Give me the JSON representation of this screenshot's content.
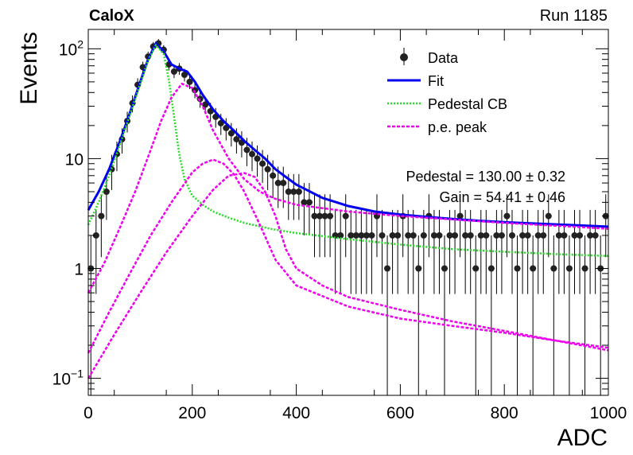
{
  "header": {
    "experiment": "CaloX",
    "run": "Run 1185"
  },
  "chart_data": {
    "type": "scatter",
    "xlabel": "ADC",
    "ylabel": "Events",
    "xlim": [
      0,
      1000
    ],
    "ylim": [
      0.07,
      150
    ],
    "log_y": true,
    "x_ticks": [
      0,
      200,
      400,
      600,
      800,
      1000
    ],
    "y_ticks": [
      {
        "value": 0.1,
        "base": "10",
        "exp": "−1"
      },
      {
        "value": 1,
        "label": "1"
      },
      {
        "value": 10,
        "label": "10"
      },
      {
        "value": 100,
        "base": "10",
        "exp": "2"
      }
    ],
    "legend_position": "top-right",
    "legend": [
      {
        "label": "Data",
        "style": "marker",
        "color": "#000000"
      },
      {
        "label": "Fit",
        "style": "solid",
        "color": "#0000ee"
      },
      {
        "label": "Pedestal CB",
        "style": "dotted",
        "color": "#22dd22"
      },
      {
        "label": "p.e. peak",
        "style": "dashed",
        "color": "#ee00ee"
      }
    ],
    "fit_params": [
      "Pedestal = 130.00 ± 0.32",
      "Gain = 54.41 ± 0.46"
    ],
    "series": [
      {
        "name": "Data",
        "kind": "points",
        "x": [
          5,
          15,
          25,
          35,
          45,
          55,
          65,
          75,
          85,
          95,
          105,
          115,
          125,
          135,
          145,
          155,
          165,
          175,
          185,
          195,
          205,
          215,
          225,
          235,
          245,
          255,
          265,
          275,
          285,
          295,
          305,
          315,
          325,
          335,
          345,
          355,
          365,
          375,
          385,
          395,
          405,
          415,
          425,
          435,
          445,
          455,
          465,
          475,
          485,
          495,
          505,
          515,
          525,
          535,
          545,
          555,
          565,
          575,
          585,
          595,
          605,
          615,
          625,
          635,
          645,
          655,
          665,
          675,
          685,
          695,
          705,
          715,
          725,
          735,
          745,
          755,
          765,
          775,
          785,
          795,
          805,
          815,
          825,
          835,
          845,
          855,
          865,
          875,
          885,
          895,
          905,
          915,
          925,
          935,
          945,
          955,
          965,
          975,
          985,
          995
        ],
        "y": [
          1,
          2,
          3,
          5,
          8,
          11,
          15,
          22,
          32,
          47,
          68,
          85,
          105,
          112,
          98,
          72,
          62,
          66,
          58,
          50,
          42,
          35,
          31,
          27,
          24,
          21,
          19,
          17,
          15,
          14,
          12,
          11,
          10,
          9,
          8,
          7,
          6,
          6,
          5,
          5,
          5,
          4,
          4,
          3,
          3,
          3,
          3,
          2,
          2,
          3,
          2,
          2,
          2,
          2,
          2,
          3,
          2,
          1,
          2,
          2,
          3,
          2,
          2,
          1,
          2,
          3,
          2,
          2,
          1,
          2,
          2,
          3,
          2,
          2,
          1,
          2,
          2,
          1,
          2,
          2,
          3,
          2,
          1,
          2,
          2,
          1,
          2,
          2,
          3,
          1,
          2,
          2,
          1,
          2,
          2,
          1,
          2,
          2,
          1,
          3
        ]
      },
      {
        "name": "Fit",
        "kind": "line",
        "x": [
          0,
          20,
          40,
          60,
          80,
          100,
          115,
          130,
          145,
          160,
          175,
          190,
          205,
          220,
          240,
          260,
          280,
          300,
          320,
          340,
          360,
          380,
          400,
          450,
          500,
          550,
          600,
          650,
          700,
          750,
          800,
          850,
          900,
          950,
          1000
        ],
        "y": [
          3.4,
          5,
          8,
          14,
          26,
          50,
          80,
          112,
          95,
          72,
          66,
          62,
          50,
          38,
          28,
          22,
          18,
          14.5,
          12,
          10,
          8,
          6.8,
          5.8,
          4.4,
          3.7,
          3.3,
          3.1,
          2.95,
          2.82,
          2.72,
          2.64,
          2.58,
          2.52,
          2.46,
          2.4
        ]
      },
      {
        "name": "Pedestal CB",
        "kind": "line",
        "x": [
          0,
          20,
          40,
          60,
          80,
          100,
          115,
          130,
          145,
          155,
          165,
          175,
          185,
          200,
          220,
          240,
          270,
          300,
          350,
          400,
          500,
          600,
          700,
          800,
          900,
          1000
        ],
        "y": [
          2.5,
          4,
          7,
          13,
          25,
          48,
          78,
          108,
          90,
          52,
          24,
          11,
          6.5,
          4.6,
          3.8,
          3.3,
          2.9,
          2.6,
          2.3,
          2.1,
          1.85,
          1.65,
          1.5,
          1.42,
          1.35,
          1.3
        ]
      },
      {
        "name": "p.e. peak",
        "kind": "line",
        "x": [
          0,
          30,
          60,
          90,
          120,
          140,
          160,
          180,
          200,
          220,
          240,
          270,
          300,
          330,
          360,
          400,
          500,
          600,
          700,
          800,
          900,
          1000
        ],
        "y": [
          0.6,
          1.1,
          2.3,
          5,
          12,
          22,
          36,
          48,
          44,
          30,
          18,
          10,
          6.5,
          5,
          4.3,
          3.8,
          3.3,
          3.0,
          2.8,
          2.6,
          2.45,
          2.3
        ]
      },
      {
        "name": "p.e. peak",
        "kind": "line",
        "x": [
          0,
          40,
          80,
          120,
          160,
          200,
          220,
          240,
          260,
          280,
          300,
          330,
          360,
          400,
          500,
          600,
          700,
          800,
          900,
          1000
        ],
        "y": [
          0.17,
          0.4,
          0.9,
          2,
          4,
          7.5,
          9,
          9.8,
          9,
          7.2,
          5,
          2.5,
          1.2,
          0.7,
          0.45,
          0.35,
          0.3,
          0.26,
          0.22,
          0.18
        ]
      },
      {
        "name": "p.e. peak",
        "kind": "line",
        "x": [
          0,
          50,
          100,
          150,
          200,
          240,
          270,
          300,
          320,
          340,
          360,
          380,
          400,
          450,
          500,
          600,
          700,
          800,
          900,
          1000
        ],
        "y": [
          0.1,
          0.25,
          0.6,
          1.4,
          3,
          5.2,
          7,
          7.4,
          6.8,
          5,
          3,
          1.5,
          1.0,
          0.7,
          0.55,
          0.42,
          0.33,
          0.27,
          0.22,
          0.19
        ]
      }
    ]
  }
}
